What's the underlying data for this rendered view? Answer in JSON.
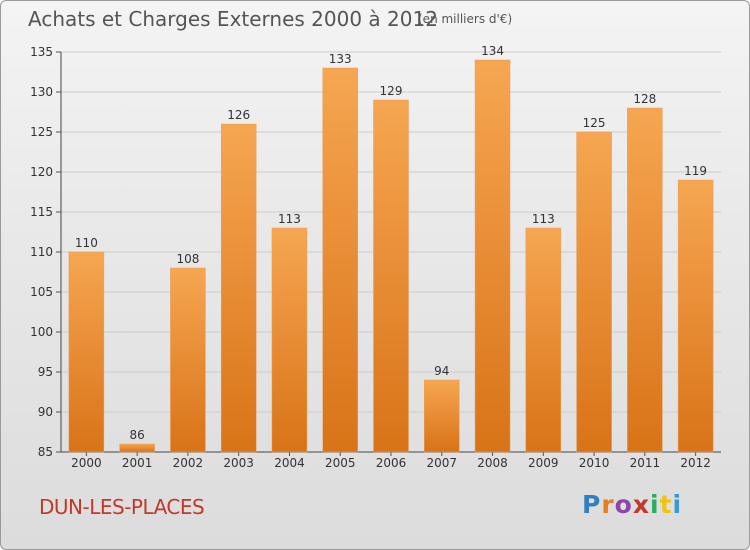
{
  "header": {
    "title": "Achats et Charges Externes 2000 à 2012",
    "subtitle": "(en milliers d'€)"
  },
  "footer": {
    "commune": "DUN-LES-PLACES",
    "logo_letters": [
      "P",
      "r",
      "o",
      "x",
      "i",
      "t",
      "i"
    ]
  },
  "colors": {
    "bar_top": "#f6a651",
    "bar_bottom": "#d97318",
    "title": "#555555",
    "commune": "#c0392b",
    "grid": "#cccccc"
  },
  "chart_data": {
    "type": "bar",
    "title": "Achats et Charges Externes 2000 à 2012",
    "subtitle": "(en milliers d'€)",
    "categories": [
      "2000",
      "2001",
      "2002",
      "2003",
      "2004",
      "2005",
      "2006",
      "2007",
      "2008",
      "2009",
      "2010",
      "2011",
      "2012"
    ],
    "values": [
      110,
      86,
      108,
      126,
      113,
      133,
      129,
      94,
      134,
      113,
      125,
      128,
      119
    ],
    "ylim": [
      85,
      135
    ],
    "yticks": [
      85,
      90,
      95,
      100,
      105,
      110,
      115,
      120,
      125,
      130,
      135
    ],
    "grid": true,
    "data_labels": true
  }
}
